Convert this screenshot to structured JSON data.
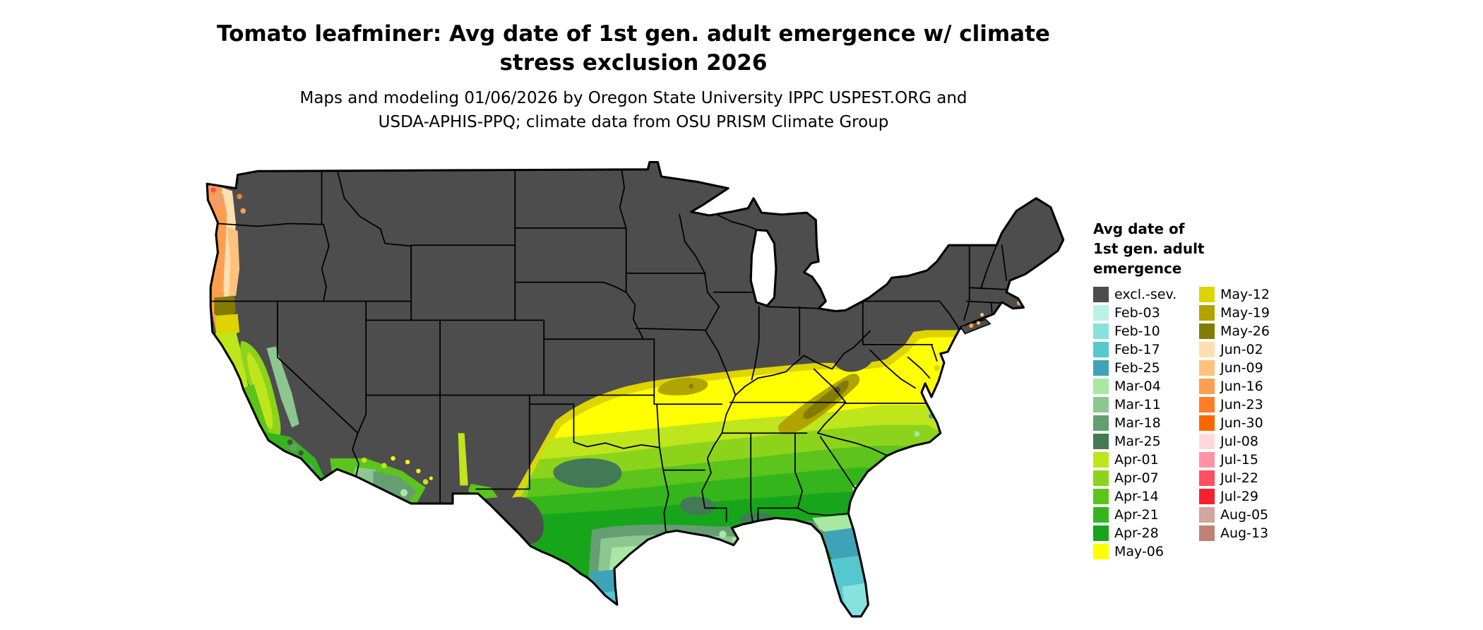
{
  "title": {
    "line1": "Tomato leafminer: Avg date of 1st gen. adult emergence w/ climate",
    "line2": "stress exclusion 2026"
  },
  "subtitle": {
    "line1": "Maps and modeling 01/06/2026 by Oregon State University IPPC USPEST.ORG and",
    "line2": "USDA-APHIS-PPQ; climate data from OSU PRISM Climate Group"
  },
  "legend": {
    "title_lines": [
      "Avg date of",
      "1st gen. adult",
      "emergence"
    ],
    "column1": [
      {
        "label": "excl.-sev.",
        "color": "#4d4d4d"
      },
      {
        "label": "Feb-03",
        "color": "#baf2e6"
      },
      {
        "label": "Feb-10",
        "color": "#86e2dd"
      },
      {
        "label": "Feb-17",
        "color": "#55c7cf"
      },
      {
        "label": "Feb-25",
        "color": "#3da3b8"
      },
      {
        "label": "Mar-04",
        "color": "#aae8a2"
      },
      {
        "label": "Mar-11",
        "color": "#8cc790"
      },
      {
        "label": "Mar-18",
        "color": "#649e72"
      },
      {
        "label": "Mar-25",
        "color": "#417a54"
      },
      {
        "label": "Apr-01",
        "color": "#bfe51c"
      },
      {
        "label": "Apr-07",
        "color": "#8cd41c"
      },
      {
        "label": "Apr-14",
        "color": "#5cc41c"
      },
      {
        "label": "Apr-21",
        "color": "#35b51c"
      },
      {
        "label": "Apr-28",
        "color": "#17a51c"
      },
      {
        "label": "May-06",
        "color": "#ffff00"
      }
    ],
    "column2": [
      {
        "label": "May-12",
        "color": "#dfd400"
      },
      {
        "label": "May-19",
        "color": "#b0a400"
      },
      {
        "label": "May-26",
        "color": "#847c00"
      },
      {
        "label": "Jun-02",
        "color": "#ffdfae"
      },
      {
        "label": "Jun-09",
        "color": "#ffc27d"
      },
      {
        "label": "Jun-16",
        "color": "#ff9e4f"
      },
      {
        "label": "Jun-23",
        "color": "#ff7d26"
      },
      {
        "label": "Jun-30",
        "color": "#fe6600"
      },
      {
        "label": "Jul-08",
        "color": "#ffd9de"
      },
      {
        "label": "Jul-15",
        "color": "#ff93a4"
      },
      {
        "label": "Jul-22",
        "color": "#fd4f63"
      },
      {
        "label": "Jul-29",
        "color": "#f8202e"
      },
      {
        "label": "Aug-05",
        "color": "#d2a69d"
      },
      {
        "label": "Aug-13",
        "color": "#bf8276"
      }
    ]
  },
  "map": {
    "background": "#ffffff",
    "excluded_fill": "#4d4d4d",
    "border_color": "#000000"
  }
}
